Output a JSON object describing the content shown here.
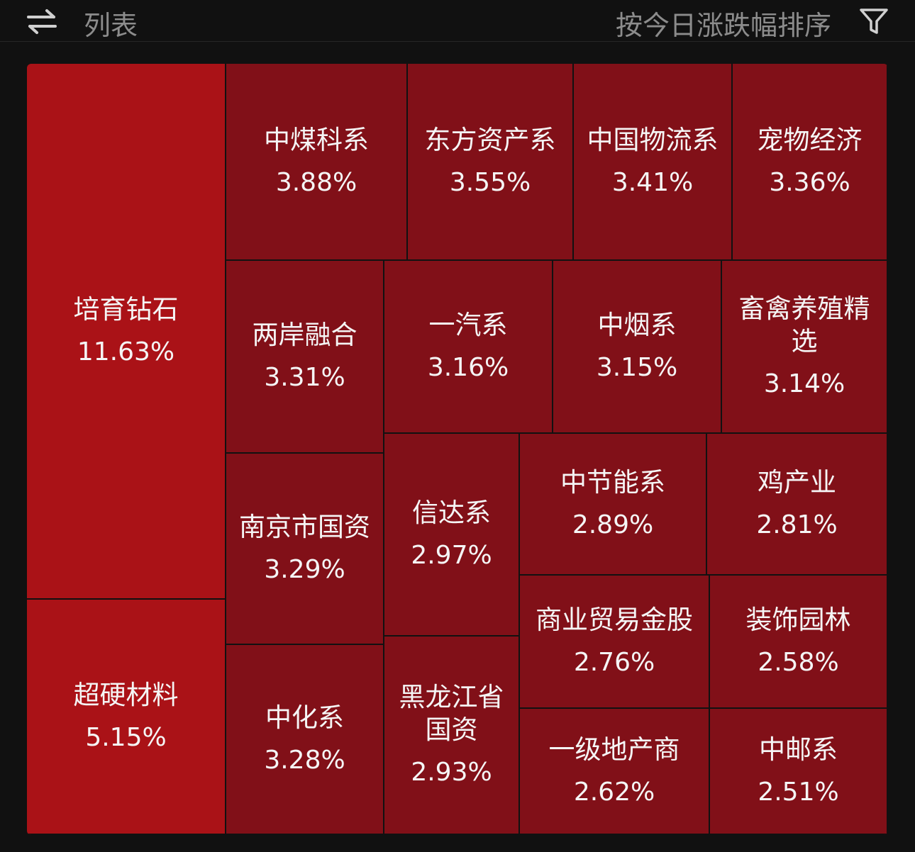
{
  "header": {
    "toggle_icon": "swap-arrows-icon",
    "list_label": "列表",
    "sort_label": "按今日涨跌幅排序",
    "filter_icon": "filter-icon"
  },
  "colors": {
    "strong_up": "#aa1217",
    "up": "#811018",
    "background": "#111111"
  },
  "tiles": [
    {
      "name": "培育钻石",
      "change": "11.63%"
    },
    {
      "name": "超硬材料",
      "change": "5.15%"
    },
    {
      "name": "中煤科系",
      "change": "3.88%"
    },
    {
      "name": "东方资产系",
      "change": "3.55%"
    },
    {
      "name": "中国物流系",
      "change": "3.41%"
    },
    {
      "name": "宠物经济",
      "change": "3.36%"
    },
    {
      "name": "两岸融合",
      "change": "3.31%"
    },
    {
      "name": "一汽系",
      "change": "3.16%"
    },
    {
      "name": "中烟系",
      "change": "3.15%"
    },
    {
      "name": "畜禽养殖精选",
      "change": "3.14%"
    },
    {
      "name": "南京市国资",
      "change": "3.29%"
    },
    {
      "name": "信达系",
      "change": "2.97%"
    },
    {
      "name": "中节能系",
      "change": "2.89%"
    },
    {
      "name": "鸡产业",
      "change": "2.81%"
    },
    {
      "name": "中化系",
      "change": "3.28%"
    },
    {
      "name": "黑龙江省国资",
      "change": "2.93%"
    },
    {
      "name": "商业贸易金股",
      "change": "2.76%"
    },
    {
      "name": "装饰园林",
      "change": "2.58%"
    },
    {
      "name": "一级地产商",
      "change": "2.62%"
    },
    {
      "name": "中邮系",
      "change": "2.51%"
    }
  ]
}
